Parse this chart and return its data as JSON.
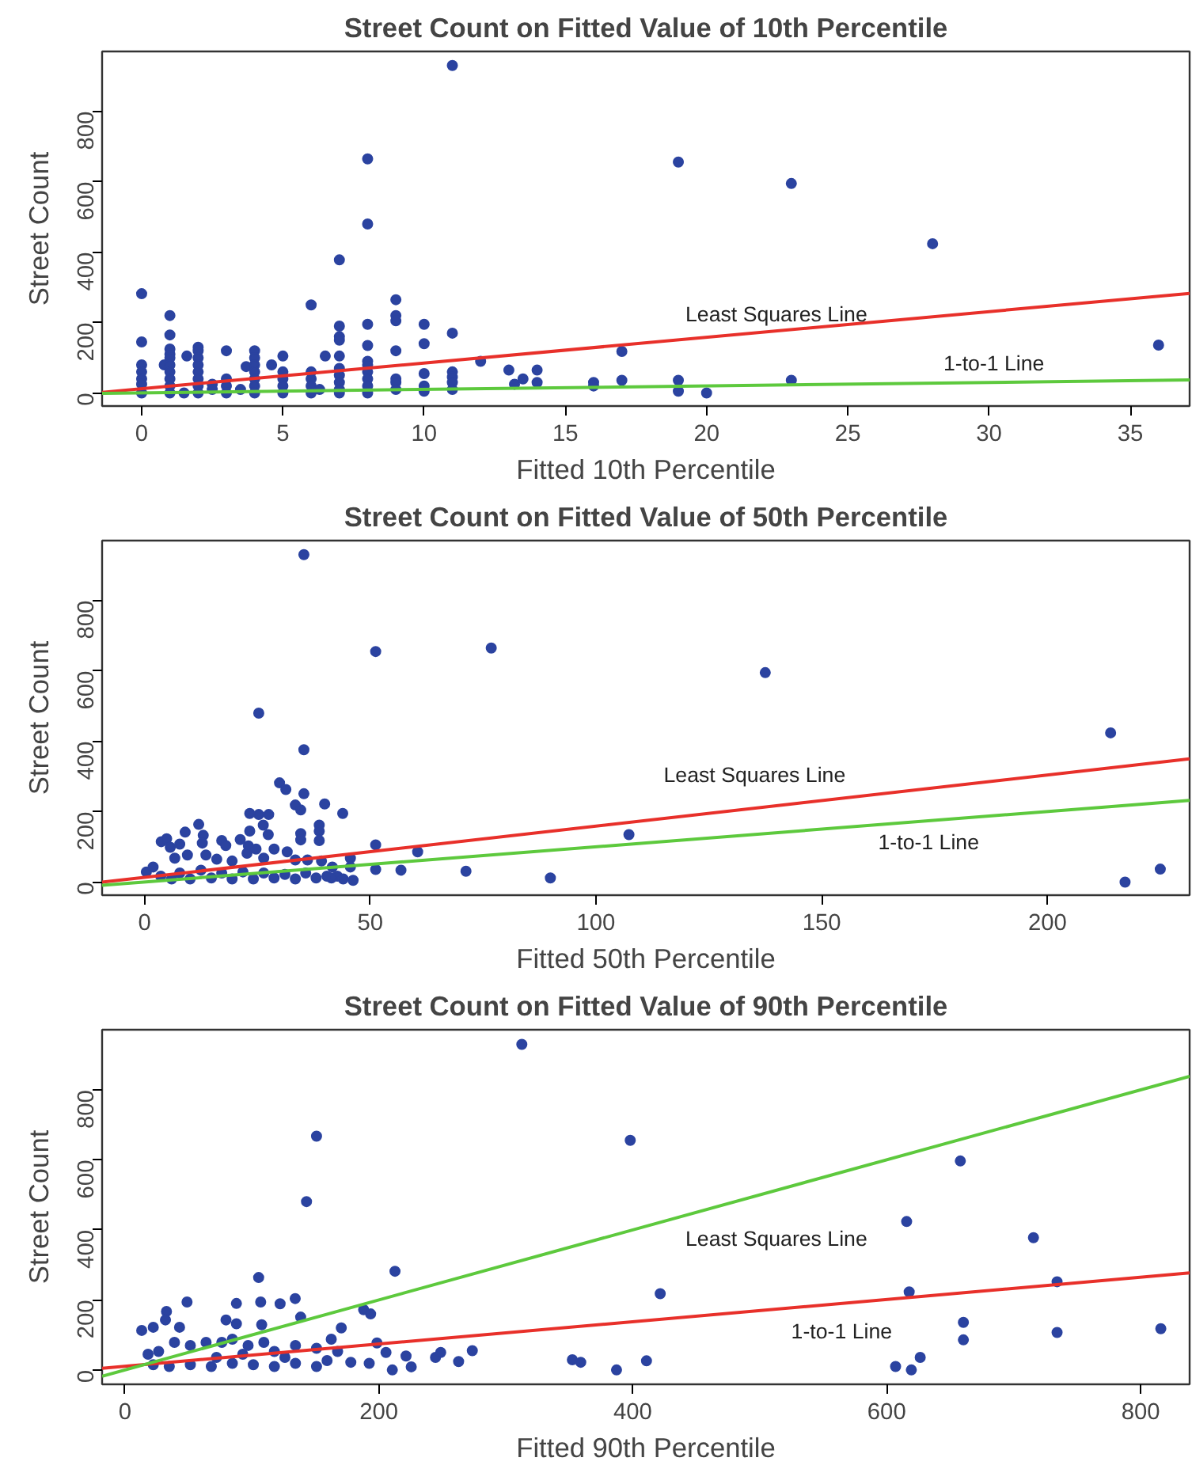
{
  "chart_data": [
    {
      "type": "scatter",
      "title": "Street Count on Fitted Value of 10th Percentile",
      "xlabel": "Fitted 10th Percentile",
      "ylabel": "Street Count",
      "xlim": [
        -1.4,
        37.1
      ],
      "ylim": [
        -37,
        970
      ],
      "xticks": [
        0,
        5,
        10,
        15,
        20,
        25,
        30,
        35
      ],
      "yticks": [
        0,
        200,
        400,
        600,
        800
      ],
      "grid": false,
      "series": [
        {
          "marker": "circle",
          "color": "#2b43a0",
          "x": [
            0,
            0,
            0,
            0,
            0,
            0,
            0,
            0.8,
            1,
            1,
            1,
            1,
            1,
            1,
            1,
            1,
            1,
            1,
            1.5,
            1.6,
            2,
            2,
            2,
            2,
            2,
            2,
            2,
            2,
            2.5,
            2.5,
            3,
            3,
            3,
            3,
            3.5,
            3.7,
            4,
            4,
            4,
            4,
            4,
            4,
            4,
            4.6,
            5,
            5,
            5,
            5,
            5,
            6,
            6,
            6,
            6,
            6,
            6.3,
            6.5,
            7,
            7,
            7,
            7,
            7,
            7,
            7,
            7,
            7,
            7,
            8,
            8,
            8,
            8,
            8,
            8,
            8,
            8,
            8,
            8,
            9,
            9,
            9,
            9,
            9,
            9,
            9,
            10,
            10,
            10,
            10,
            10,
            11,
            11,
            11,
            11,
            11,
            11,
            12,
            13,
            13.2,
            13.5,
            14,
            14,
            16,
            16,
            17,
            17,
            19,
            19,
            19,
            20,
            23,
            23,
            28,
            36
          ],
          "values": [
            282,
            145,
            80,
            60,
            40,
            25,
            0,
            80,
            220,
            165,
            125,
            110,
            100,
            80,
            60,
            40,
            20,
            0,
            0,
            105,
            130,
            120,
            100,
            80,
            60,
            40,
            20,
            0,
            25,
            10,
            120,
            40,
            20,
            0,
            10,
            75,
            120,
            100,
            80,
            60,
            40,
            20,
            0,
            80,
            105,
            60,
            40,
            20,
            0,
            250,
            60,
            40,
            20,
            0,
            10,
            105,
            378,
            190,
            160,
            150,
            105,
            70,
            50,
            30,
            10,
            0,
            665,
            480,
            195,
            135,
            90,
            80,
            60,
            40,
            20,
            0,
            265,
            220,
            205,
            120,
            40,
            30,
            10,
            195,
            140,
            55,
            20,
            5,
            930,
            170,
            60,
            45,
            30,
            10,
            90,
            65,
            25,
            40,
            65,
            30,
            30,
            20,
            118,
            36,
            656,
            36,
            5,
            0,
            595,
            36,
            424,
            136
          ]
        },
        {
          "type": "line",
          "marker": "none",
          "color": "#e8302a",
          "x": [
            -1.4,
            37.1
          ],
          "values": [
            2,
            283
          ]
        },
        {
          "type": "line",
          "marker": "none",
          "color": "#5dc93d",
          "x": [
            -1.4,
            37.1
          ],
          "values": [
            -1,
            37
          ]
        }
      ],
      "annotations": [
        "Least Squares Line",
        "1-to-1 Line"
      ]
    },
    {
      "type": "scatter",
      "title": "Street Count on Fitted Value of 50th Percentile",
      "xlabel": "Fitted 50th Percentile",
      "ylabel": "Street Count",
      "xlim": [
        -9.4,
        231.5
      ],
      "ylim": [
        -37,
        970
      ],
      "xticks": [
        0,
        50,
        100,
        150,
        200
      ],
      "yticks": [
        0,
        200,
        400,
        600,
        800
      ],
      "grid": false,
      "series": [
        {
          "marker": "circle",
          "color": "#2b43a0",
          "x": [
            35.3,
            51.2,
            76.8,
            25.3,
            35.3,
            29.9,
            31.3,
            35.3,
            33.4,
            34.6,
            39.9,
            43.9,
            23.3,
            25.3,
            27.5,
            23.3,
            26.3,
            27.4,
            34.6,
            34.6,
            38.7,
            38.7,
            38.7,
            51.2,
            51.2,
            56.8,
            60.5,
            71.2,
            89.9,
            107.3,
            137.5,
            214,
            217.2,
            225,
            3.7,
            4.9,
            5.7,
            7.8,
            9.0,
            12.0,
            13.0,
            12.8,
            17.1,
            18.0,
            21.2,
            23.0,
            22.7,
            24.7,
            6.7,
            9.5,
            13.6,
            16,
            19.4,
            26.4,
            28.7,
            31.6,
            33.4,
            36.1,
            39.2,
            41.6,
            45.6,
            45.6,
            42.7,
            46.2,
            41.4,
            44,
            0.4,
            1.9,
            3.6,
            6,
            7.8,
            10.1,
            12.5,
            14.8,
            17.1,
            19.4,
            21.8,
            24.1,
            26.4,
            28.7,
            31.1,
            33.4,
            35.7,
            38,
            40.4
          ],
          "values": [
            930,
            655,
            665,
            480,
            376,
            282,
            263,
            251,
            219,
            205,
            222,
            195,
            195,
            192,
            192,
            145,
            162,
            135,
            138,
            120,
            162,
            145,
            118,
            106,
            36,
            34,
            86,
            31,
            12,
            135,
            595,
            424,
            0,
            37,
            115,
            123,
            99,
            108,
            142,
            164,
            133,
            111,
            118,
            104,
            121,
            103,
            82,
            94,
            68,
            77,
            77,
            65,
            60,
            68,
            94,
            86,
            63,
            63,
            60,
            43,
            68,
            43,
            17,
            5,
            12,
            9,
            29,
            43,
            17,
            9,
            26,
            9,
            34,
            12,
            26,
            9,
            29,
            9,
            26,
            12,
            22,
            9,
            26,
            12,
            17
          ]
        },
        {
          "type": "line",
          "marker": "none",
          "color": "#e8302a",
          "x": [
            -9.4,
            231.5
          ],
          "values": [
            0,
            350
          ]
        },
        {
          "type": "line",
          "marker": "none",
          "color": "#5dc93d",
          "x": [
            -9.4,
            231.5
          ],
          "values": [
            -9,
            232
          ]
        }
      ],
      "annotations": [
        "Least Squares Line",
        "1-to-1 Line"
      ]
    },
    {
      "type": "scatter",
      "title": "Street Count on Fitted Value of 90th Percentile",
      "xlabel": "Fitted 90th Percentile",
      "ylabel": "Street Count",
      "xlim": [
        -18,
        838.6
      ],
      "ylim": [
        -41,
        972
      ],
      "xticks": [
        0,
        200,
        400,
        600,
        800
      ],
      "yticks": [
        0,
        200,
        400,
        600,
        800
      ],
      "grid": false,
      "series": [
        {
          "marker": "circle",
          "color": "#2b43a0",
          "x": [
            312.6,
            150.9,
            143,
            398,
            212.7,
            105.3,
            48.9,
            87.8,
            106.9,
            122.2,
            134.1,
            138.4,
            32.7,
            31.9,
            22.3,
            13.2,
            79.6,
            87.8,
            107.7,
            170.4,
            188,
            193.5,
            162.5,
            198.5,
            205.6,
            210.6,
            221.4,
            225.5,
            244.6,
            248.7,
            262.8,
            273.6,
            352.4,
            359,
            387.2,
            43,
            39,
            51.5,
            63.9,
            76.3,
            84.6,
            97,
            109.4,
            117.7,
            134.3,
            150.9,
            167.5,
            177.9,
            192.4,
            134.3,
            150.9,
            117.7,
            101.1,
            84.6,
            68,
            51.5,
            34.9,
            22.3,
            18.2,
            26.5,
            72.1,
            92.8,
            126,
            159.2,
            658,
            615.7,
            715.6,
            421.6,
            617.7,
            734.2,
            660.4,
            660.4,
            734.2,
            815.9,
            410.8,
            607,
            619.4,
            626.4
          ],
          "values": [
            930,
            668,
            481,
            656,
            282,
            264,
            194,
            190,
            194,
            189,
            204,
            151,
            167,
            143,
            122,
            113,
            143,
            132,
            129,
            120,
            172,
            160,
            88,
            77,
            50,
            0,
            40,
            9,
            36,
            50,
            24,
            55,
            29,
            22,
            0,
            122,
            79,
            70,
            79,
            79,
            88,
            70,
            79,
            53,
            70,
            62,
            53,
            22,
            19,
            19,
            10,
            10,
            15,
            19,
            10,
            15,
            10,
            15,
            45,
            53,
            36,
            45,
            36,
            27,
            597,
            424,
            378,
            218,
            223,
            252,
            136,
            86,
            107,
            118,
            26,
            10,
            0,
            36
          ]
        },
        {
          "type": "line",
          "marker": "none",
          "color": "#e8302a",
          "x": [
            -18,
            838.6
          ],
          "values": [
            5,
            277
          ]
        },
        {
          "type": "line",
          "marker": "none",
          "color": "#5dc93d",
          "x": [
            -18,
            838.6
          ],
          "values": [
            -18,
            839
          ]
        }
      ],
      "annotations": [
        "Least Squares Line",
        "1-to-1 Line"
      ]
    }
  ]
}
